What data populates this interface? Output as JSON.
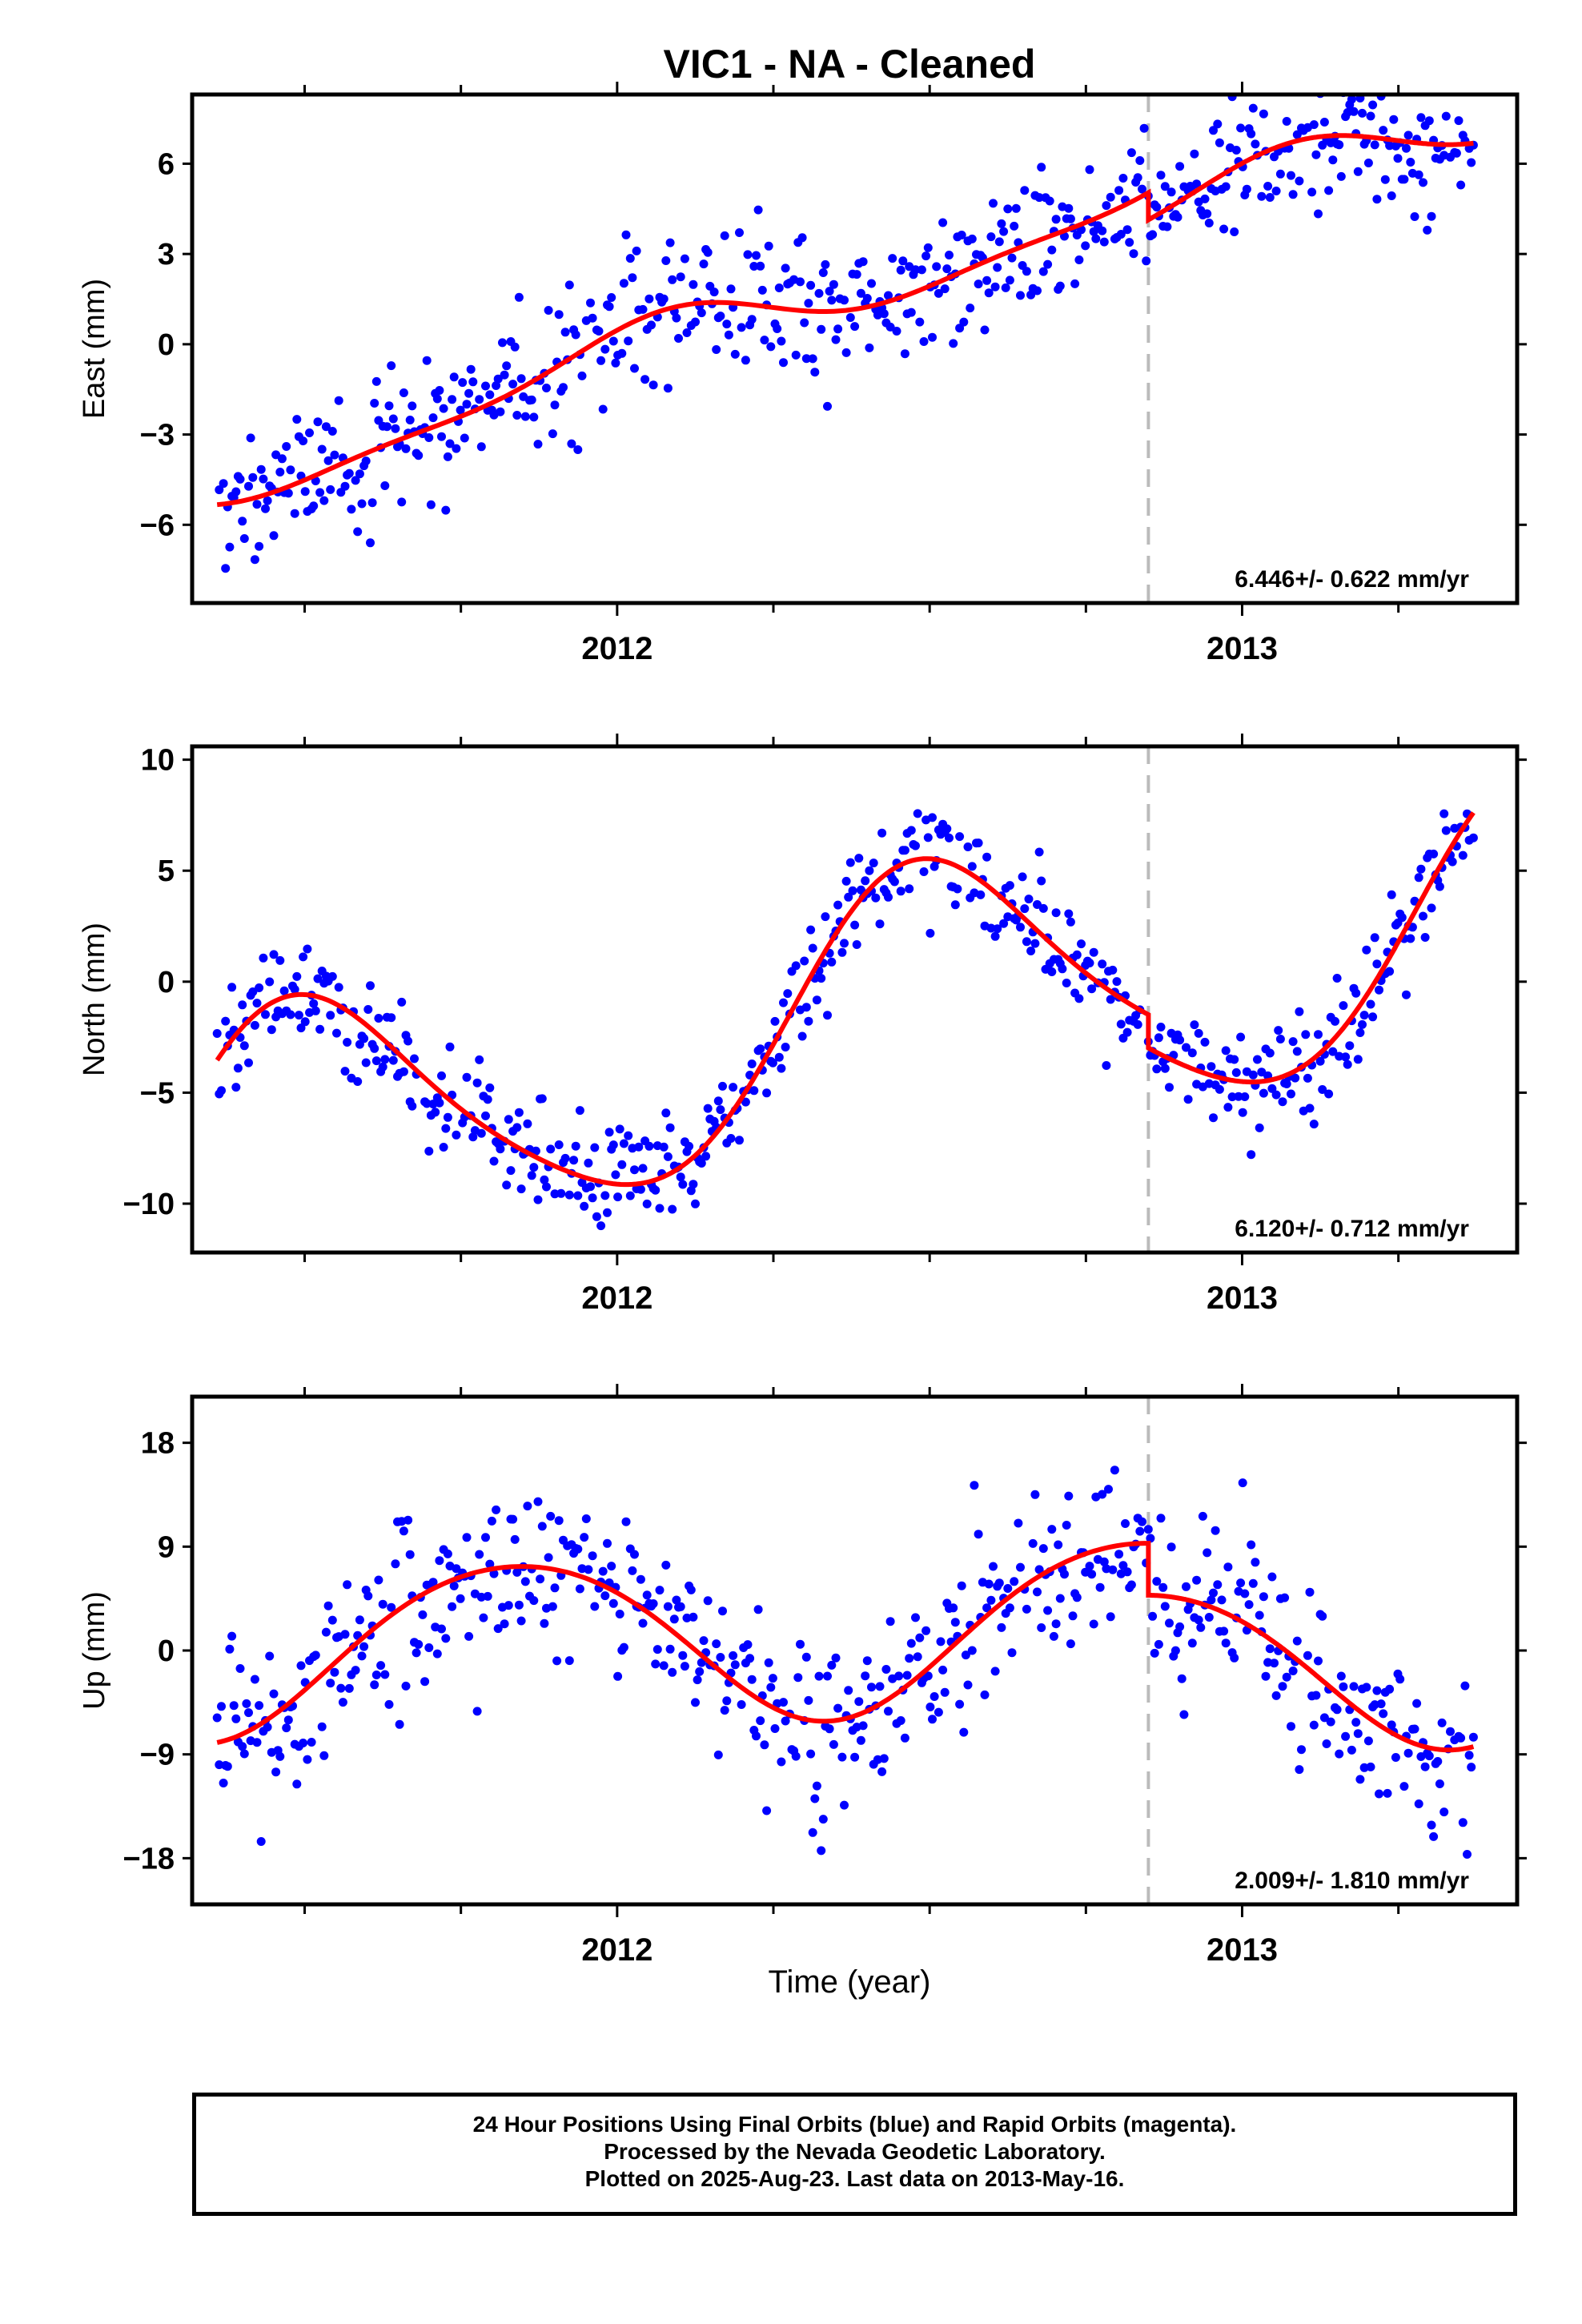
{
  "title": "VIC1  - NA - Cleaned",
  "xlabel": "Time (year)",
  "footer": {
    "line1": "24 Hour Positions Using Final Orbits (blue) and Rapid Orbits (magenta).",
    "line2": "Processed by the Nevada Geodetic Laboratory.",
    "line3": "Plotted on 2025-Aug-23. Last data on 2013-May-16."
  },
  "colors": {
    "final_orbits": "#0000ff",
    "rapid_orbits": "#ff00ff",
    "model": "#ff0000",
    "step": "#bbbbbb"
  },
  "chart_data": [
    {
      "type": "scatter",
      "ylabel": "East (mm)",
      "xlim": [
        2011.32,
        2013.44
      ],
      "ylim": [
        -8.6,
        8.3
      ],
      "yticks": [
        -6,
        -3,
        0,
        3,
        6
      ],
      "ytick_labels": [
        "−6",
        "−3",
        "0",
        "3",
        "6"
      ],
      "xticks": [
        2012,
        2013
      ],
      "xtick_labels": [
        "2012",
        "2013"
      ],
      "step_epoch": 2012.85,
      "velocity_label": "6.446+/- 0.622 mm/yr",
      "model": {
        "velocity": 6.446,
        "offset_at_2012": -0.5,
        "annual_amp": 0.9,
        "annual_phase": 1.35,
        "semi_amp": 0.3,
        "semi_phase": 0.3,
        "step": -0.9
      },
      "noise_sd": 1.1,
      "series": [
        {
          "name": "Final Orbits",
          "color": "#0000ff",
          "n_points": 600
        },
        {
          "name": "Model fit",
          "color": "#ff0000"
        }
      ]
    },
    {
      "type": "scatter",
      "ylabel": "North (mm)",
      "xlim": [
        2011.32,
        2013.44
      ],
      "ylim": [
        -12.2,
        10.6
      ],
      "yticks": [
        -10,
        -5,
        0,
        5,
        10
      ],
      "ytick_labels": [
        "−10",
        "−5",
        "0",
        "5",
        "10"
      ],
      "xticks": [
        2012,
        2013
      ],
      "xtick_labels": [
        "2012",
        "2013"
      ],
      "step_epoch": 2012.85,
      "velocity_label": "6.120+/- 0.712 mm/yr",
      "model": {
        "velocity": 6.12,
        "offset_at_2012": -3.8,
        "annual_amp": 5.8,
        "annual_phase": 4.7,
        "semi_amp": 0.8,
        "semi_phase": 2.5,
        "step": -1.5
      },
      "noise_sd": 1.2,
      "series": [
        {
          "name": "Final Orbits",
          "color": "#0000ff",
          "n_points": 600
        },
        {
          "name": "Model fit",
          "color": "#ff0000"
        }
      ]
    },
    {
      "type": "scatter",
      "ylabel": "Up (mm)",
      "xlim": [
        2011.32,
        2013.44
      ],
      "ylim": [
        -22,
        22
      ],
      "yticks": [
        -18,
        -9,
        0,
        9,
        18
      ],
      "ytick_labels": [
        "−18",
        "−9",
        "0",
        "9",
        "18"
      ],
      "xticks": [
        2012,
        2013
      ],
      "xtick_labels": [
        "2012",
        "2013"
      ],
      "step_epoch": 2012.85,
      "velocity_label": "2.009+/- 1.810 mm/yr",
      "model": {
        "velocity": 2.009,
        "offset_at_2012": 1.0,
        "annual_amp": 7.2,
        "annual_phase": 2.6,
        "semi_amp": 0.6,
        "semi_phase": 0.5,
        "step": -4.5
      },
      "noise_sd": 3.8,
      "series": [
        {
          "name": "Final Orbits",
          "color": "#0000ff",
          "n_points": 600
        },
        {
          "name": "Model fit",
          "color": "#ff0000"
        }
      ]
    }
  ]
}
